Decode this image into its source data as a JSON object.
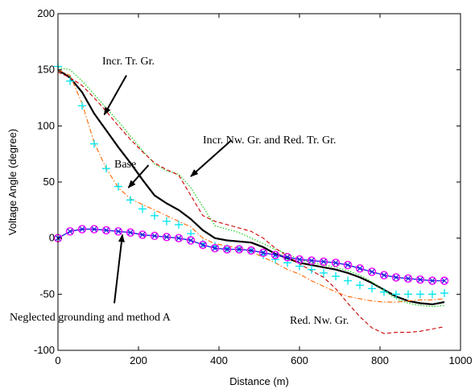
{
  "chart_data": {
    "type": "line",
    "xlabel": "Distance (m)",
    "ylabel": "Voltage Angle (degree)",
    "xlim": [
      0,
      1000
    ],
    "ylim": [
      -100,
      200
    ],
    "xticks": [
      0,
      200,
      400,
      600,
      800,
      1000
    ],
    "yticks": [
      -100,
      -50,
      0,
      50,
      100,
      150,
      200
    ],
    "grid": false,
    "colors": {
      "base": "#000000",
      "incr_tr_gr": "#00cc00",
      "incr_nw_red_tr": "#cc0000",
      "red_nw_gr": "#ff6600",
      "plus_markers": "#00e5ee",
      "neglected": "#2222dd",
      "circle_markers": "#ff00ff"
    },
    "series": [
      {
        "style": "solid-thick",
        "color": "#000000",
        "x": [
          0,
          30,
          60,
          90,
          120,
          150,
          180,
          210,
          240,
          270,
          300,
          330,
          360,
          390,
          420,
          450,
          480,
          510,
          540,
          570,
          600,
          630,
          660,
          690,
          720,
          750,
          780,
          810,
          840,
          870,
          900,
          930,
          960
        ],
        "y": [
          150,
          143,
          130,
          111,
          96,
          81,
          67,
          52,
          38,
          31,
          25,
          17,
          7,
          0,
          -2,
          -3,
          -4,
          -8,
          -14,
          -18,
          -22,
          -24,
          -26,
          -28,
          -31,
          -35,
          -40,
          -46,
          -52,
          -56,
          -58,
          -59,
          -57
        ]
      },
      {
        "style": "dotted",
        "color": "#00cc00",
        "x": [
          0,
          30,
          60,
          90,
          120,
          150,
          180,
          210,
          240,
          270,
          300,
          330,
          360,
          390,
          420,
          450,
          480,
          510,
          540,
          570,
          600,
          630,
          660,
          690,
          720,
          750,
          780,
          810,
          840,
          870,
          900,
          930,
          960
        ],
        "y": [
          152,
          150,
          140,
          128,
          116,
          104,
          91,
          78,
          66,
          60,
          57,
          45,
          28,
          11,
          8,
          5,
          0,
          -5,
          -10,
          -14,
          -19,
          -22,
          -24,
          -26,
          -29,
          -33,
          -39,
          -47,
          -54,
          -58,
          -60,
          -61,
          -60
        ]
      },
      {
        "style": "dashed",
        "color": "#cc0000",
        "x": [
          0,
          30,
          60,
          90,
          120,
          150,
          180,
          210,
          240,
          270,
          300,
          330,
          360,
          390,
          420,
          450,
          480,
          510,
          540,
          570,
          600,
          630,
          660,
          690,
          720,
          750,
          780,
          810,
          840,
          870,
          900,
          930,
          960
        ],
        "y": [
          148,
          143,
          136,
          125,
          113,
          100,
          88,
          77,
          67,
          61,
          56,
          38,
          20,
          15,
          12,
          9,
          6,
          0,
          -9,
          -16,
          -23,
          -29,
          -35,
          -45,
          -58,
          -70,
          -80,
          -85,
          -84,
          -84,
          -83,
          -81,
          -79
        ]
      },
      {
        "style": "dash-dot",
        "color": "#ff6600",
        "x": [
          0,
          30,
          60,
          90,
          120,
          150,
          180,
          210,
          240,
          270,
          300,
          330,
          360,
          390,
          420,
          450,
          480,
          510,
          540,
          570,
          600,
          630,
          660,
          690,
          720,
          750,
          780,
          810,
          840,
          870,
          900,
          930,
          960
        ],
        "y": [
          150,
          145,
          120,
          85,
          62,
          45,
          35,
          30,
          25,
          20,
          15,
          10,
          0,
          -5,
          -7,
          -9,
          -12,
          -17,
          -22,
          -28,
          -32,
          -38,
          -43,
          -48,
          -52,
          -54,
          -56,
          -57,
          -57,
          -56,
          -55,
          -55,
          -54
        ]
      },
      {
        "style": "plus-markers",
        "color": "#00e5ee",
        "x": [
          0,
          30,
          60,
          90,
          120,
          150,
          180,
          210,
          240,
          270,
          300,
          330,
          360,
          390,
          420,
          450,
          480,
          510,
          540,
          570,
          600,
          630,
          660,
          690,
          720,
          750,
          780,
          810,
          840,
          870,
          900,
          930,
          960
        ],
        "y": [
          153,
          140,
          118,
          84,
          62,
          46,
          34,
          26,
          20,
          15,
          12,
          4,
          -5,
          -7,
          -9,
          -10,
          -11,
          -15,
          -19,
          -22,
          -25,
          -28,
          -31,
          -34,
          -38,
          -42,
          -45,
          -48,
          -50,
          -50,
          -50,
          -50,
          -49
        ]
      },
      {
        "style": "solid-x-circle",
        "color": "#2222dd",
        "marker_color": "#ff00ff",
        "x": [
          0,
          30,
          60,
          90,
          120,
          150,
          180,
          210,
          240,
          270,
          300,
          330,
          360,
          390,
          420,
          450,
          480,
          510,
          540,
          570,
          600,
          630,
          660,
          690,
          720,
          750,
          780,
          810,
          840,
          870,
          900,
          930,
          960
        ],
        "y": [
          0,
          6,
          8,
          8,
          7,
          6,
          5,
          3,
          2,
          1,
          0,
          -2,
          -6,
          -9,
          -10,
          -10,
          -11,
          -13,
          -15,
          -17,
          -19,
          -20,
          -21,
          -22,
          -24,
          -27,
          -30,
          -33,
          -35,
          -36,
          -37,
          -38,
          -38
        ]
      }
    ],
    "annotations": [
      {
        "text": "Incr. Tr. Gr.",
        "arrow_to": [
          115,
          110
        ],
        "arrow_from": [
          170,
          145
        ]
      },
      {
        "text": "Incr. Nw. Gr. and Red. Tr. Gr.",
        "arrow_to": [
          330,
          55
        ],
        "arrow_from": [
          430,
          87
        ]
      },
      {
        "text": "Base",
        "arrow_to": [
          175,
          45
        ],
        "arrow_from": [
          225,
          65
        ]
      },
      {
        "text": "Neglected grounding and method A",
        "arrow_to": [
          160,
          3
        ],
        "arrow_from": [
          140,
          -58
        ]
      },
      {
        "text": "Red. Nw. Gr."
      }
    ]
  }
}
